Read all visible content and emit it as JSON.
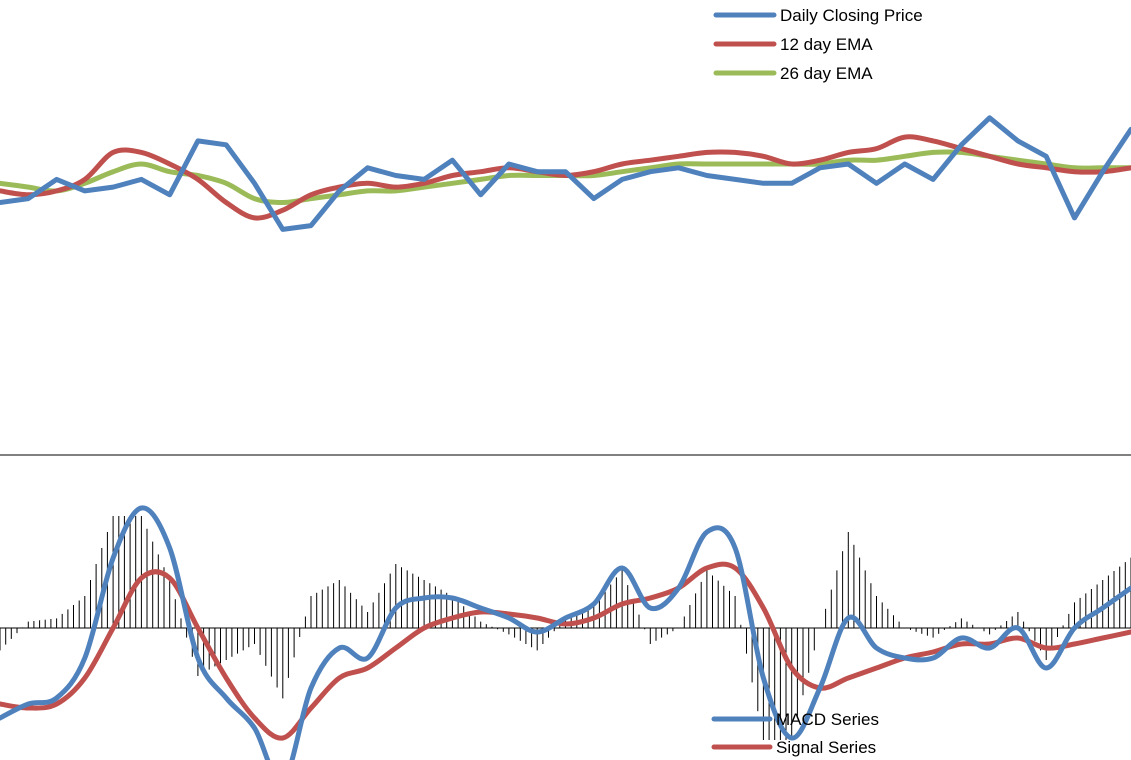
{
  "chart_data": [
    {
      "type": "line",
      "title": "",
      "xlabel": "",
      "ylabel": "",
      "grid": false,
      "legend_position": "top-right",
      "ylim": [
        0,
        100
      ],
      "x": [
        0,
        5,
        10,
        15,
        20,
        25,
        30,
        35,
        40,
        45,
        50,
        55,
        60,
        65,
        70,
        75,
        80,
        85,
        90,
        95,
        100,
        105,
        110,
        115,
        120,
        125,
        130,
        135,
        140,
        145,
        150,
        155,
        160,
        165,
        170,
        175,
        180,
        185,
        190,
        195,
        200
      ],
      "series": [
        {
          "name": "Daily Closing Price",
          "color": "#4f81bd",
          "values": [
            50,
            51,
            56,
            53,
            54,
            56,
            52,
            66,
            65,
            55,
            43,
            44,
            53,
            59,
            57,
            56,
            61,
            52,
            60,
            58,
            58,
            51,
            56,
            58,
            59,
            57,
            56,
            55,
            55,
            59,
            60,
            55,
            60,
            56,
            65,
            72,
            66,
            62,
            46,
            58,
            69
          ]
        },
        {
          "name": "12 day EMA",
          "color": "#c0504d",
          "values": [
            53,
            52,
            53,
            56,
            63,
            63,
            60,
            56,
            50,
            46,
            48,
            52,
            54,
            55,
            54,
            55,
            57,
            58,
            59,
            58,
            57,
            58,
            60,
            61,
            62,
            63,
            63,
            62,
            60,
            61,
            63,
            64,
            67,
            66,
            64,
            62,
            60,
            59,
            58,
            58,
            59
          ]
        },
        {
          "name": "26 day EMA",
          "color": "#9bbb59",
          "values": [
            55,
            54,
            53,
            55,
            58,
            60,
            58,
            57,
            55,
            51,
            50,
            51,
            52,
            53,
            53,
            54,
            55,
            56,
            57,
            57,
            57,
            57,
            58,
            59,
            60,
            60,
            60,
            60,
            60,
            60,
            61,
            61,
            62,
            63,
            63,
            62,
            61,
            60,
            59,
            59,
            59
          ]
        }
      ]
    },
    {
      "type": "line",
      "title": "",
      "xlabel": "",
      "ylabel": "",
      "grid": false,
      "legend_position": "bottom-right",
      "ylim": [
        -10,
        10
      ],
      "x": [
        0,
        5,
        10,
        15,
        20,
        25,
        30,
        35,
        40,
        45,
        50,
        55,
        60,
        65,
        70,
        75,
        80,
        85,
        90,
        95,
        100,
        105,
        110,
        115,
        120,
        125,
        130,
        135,
        140,
        145,
        150,
        155,
        160,
        165,
        170,
        175,
        180,
        185,
        190,
        195,
        200
      ],
      "series": [
        {
          "name": "MACD Series",
          "color": "#4f81bd",
          "values": [
            -4.5,
            -3.8,
            -3.5,
            -1.5,
            3.5,
            6.0,
            4.0,
            -1.5,
            -3.5,
            -5.0,
            -7.7,
            -3.0,
            -1.0,
            -1.5,
            1.0,
            1.5,
            1.5,
            1.0,
            0.5,
            -0.2,
            0.5,
            1.2,
            3.0,
            1.0,
            2.0,
            4.8,
            4.0,
            -2.5,
            -5.5,
            -3.0,
            0.5,
            -1.0,
            -1.5,
            -1.5,
            -0.5,
            -1.0,
            0.0,
            -2.0,
            0.0,
            1.0,
            2.0
          ]
        },
        {
          "name": "Signal Series",
          "color": "#c0504d",
          "values": [
            -3.8,
            -4.0,
            -3.8,
            -2.5,
            0.0,
            2.5,
            2.5,
            0.0,
            -2.5,
            -4.5,
            -5.5,
            -4.0,
            -2.5,
            -2.0,
            -1.0,
            0.0,
            0.5,
            0.8,
            0.7,
            0.5,
            0.2,
            0.5,
            1.2,
            1.5,
            2.0,
            3.0,
            3.0,
            1.0,
            -2.0,
            -3.0,
            -2.5,
            -2.0,
            -1.5,
            -1.2,
            -0.8,
            -0.8,
            -0.5,
            -1.0,
            -0.8,
            -0.5,
            -0.2
          ]
        }
      ]
    }
  ]
}
